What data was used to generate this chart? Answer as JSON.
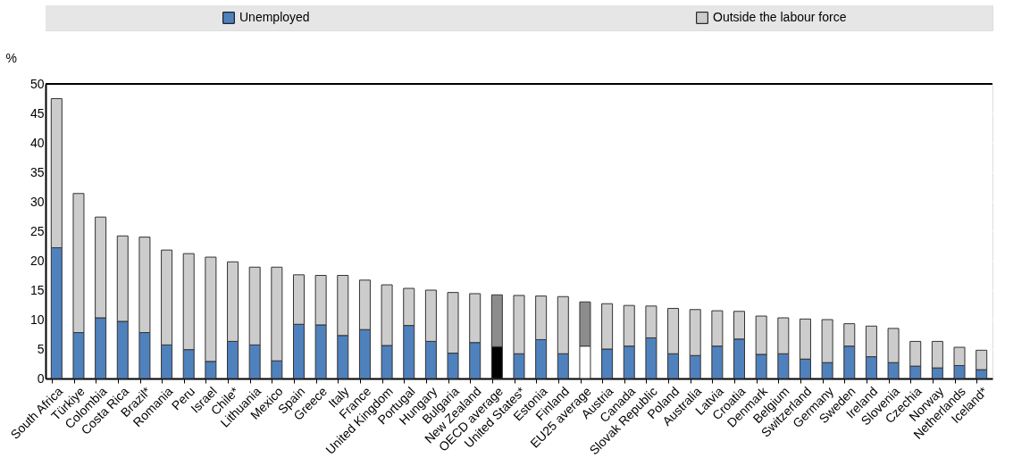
{
  "chart_data": {
    "type": "bar",
    "stacked": true,
    "ylabel": "%",
    "legend": "top",
    "grid": true,
    "categories": [
      "South Africa",
      "Türkiye",
      "Colombia",
      "Costa Rica",
      "Brazil*",
      "Romania",
      "Peru",
      "Israel",
      "Chile*",
      "Lithuania",
      "Mexico",
      "Spain",
      "Greece",
      "Italy",
      "France",
      "United Kingdom",
      "Portugal",
      "Hungary",
      "Bulgaria",
      "New Zealand",
      "OECD average",
      "United States*",
      "Estonia",
      "Finland",
      "EU25 average",
      "Austria",
      "Canada",
      "Slovak Republic",
      "Poland",
      "Australia",
      "Latvia",
      "Croatia",
      "Denmark",
      "Belgium",
      "Switzerland",
      "Germany",
      "Sweden",
      "Ireland",
      "Slovenia",
      "Czechia",
      "Norway",
      "Netherlands",
      "Iceland*"
    ],
    "ylim": [
      0,
      50
    ],
    "yticks": [
      0,
      5,
      10,
      15,
      20,
      25,
      30,
      35,
      40,
      45,
      50
    ],
    "series": [
      {
        "name": "Unemployed",
        "color": "#4f81bd",
        "values": [
          22.2,
          7.8,
          10.3,
          9.7,
          7.8,
          5.7,
          4.9,
          2.9,
          6.3,
          5.7,
          3.0,
          9.2,
          9.1,
          7.3,
          8.3,
          5.6,
          9.0,
          6.3,
          4.3,
          6.1,
          5.4,
          4.2,
          6.6,
          4.2,
          5.5,
          5.0,
          5.5,
          6.9,
          4.2,
          3.9,
          5.5,
          6.7,
          4.1,
          4.2,
          3.3,
          2.7,
          5.5,
          3.7,
          2.7,
          2.1,
          1.8,
          2.2,
          1.5
        ],
        "colors": [
          "#4f81bd",
          "#4f81bd",
          "#4f81bd",
          "#4f81bd",
          "#4f81bd",
          "#4f81bd",
          "#4f81bd",
          "#4f81bd",
          "#4f81bd",
          "#4f81bd",
          "#4f81bd",
          "#4f81bd",
          "#4f81bd",
          "#4f81bd",
          "#4f81bd",
          "#4f81bd",
          "#4f81bd",
          "#4f81bd",
          "#4f81bd",
          "#4f81bd",
          "#000000",
          "#4f81bd",
          "#4f81bd",
          "#4f81bd",
          "#ffffff",
          "#4f81bd",
          "#4f81bd",
          "#4f81bd",
          "#4f81bd",
          "#4f81bd",
          "#4f81bd",
          "#4f81bd",
          "#4f81bd",
          "#4f81bd",
          "#4f81bd",
          "#4f81bd",
          "#4f81bd",
          "#4f81bd",
          "#4f81bd",
          "#4f81bd",
          "#4f81bd",
          "#4f81bd",
          "#4f81bd"
        ]
      },
      {
        "name": "Outside the labour force",
        "color": "#cccccc",
        "values": [
          25.3,
          23.6,
          17.1,
          14.5,
          16.2,
          16.1,
          16.3,
          17.7,
          13.5,
          13.2,
          15.9,
          8.4,
          8.4,
          10.2,
          8.4,
          10.3,
          6.3,
          8.7,
          10.3,
          8.3,
          8.8,
          9.9,
          7.4,
          9.7,
          7.5,
          7.7,
          6.9,
          5.4,
          7.7,
          7.8,
          6.0,
          4.7,
          6.5,
          6.1,
          6.8,
          7.3,
          3.8,
          5.2,
          5.8,
          4.2,
          4.5,
          3.1,
          3.3
        ],
        "colors": [
          "#cccccc",
          "#cccccc",
          "#cccccc",
          "#cccccc",
          "#cccccc",
          "#cccccc",
          "#cccccc",
          "#cccccc",
          "#cccccc",
          "#cccccc",
          "#cccccc",
          "#cccccc",
          "#cccccc",
          "#cccccc",
          "#cccccc",
          "#cccccc",
          "#cccccc",
          "#cccccc",
          "#cccccc",
          "#cccccc",
          "#8c8c8c",
          "#cccccc",
          "#cccccc",
          "#cccccc",
          "#8c8c8c",
          "#cccccc",
          "#cccccc",
          "#cccccc",
          "#cccccc",
          "#cccccc",
          "#cccccc",
          "#cccccc",
          "#cccccc",
          "#cccccc",
          "#cccccc",
          "#cccccc",
          "#cccccc",
          "#cccccc",
          "#cccccc",
          "#cccccc",
          "#cccccc",
          "#cccccc",
          "#cccccc"
        ]
      }
    ]
  }
}
